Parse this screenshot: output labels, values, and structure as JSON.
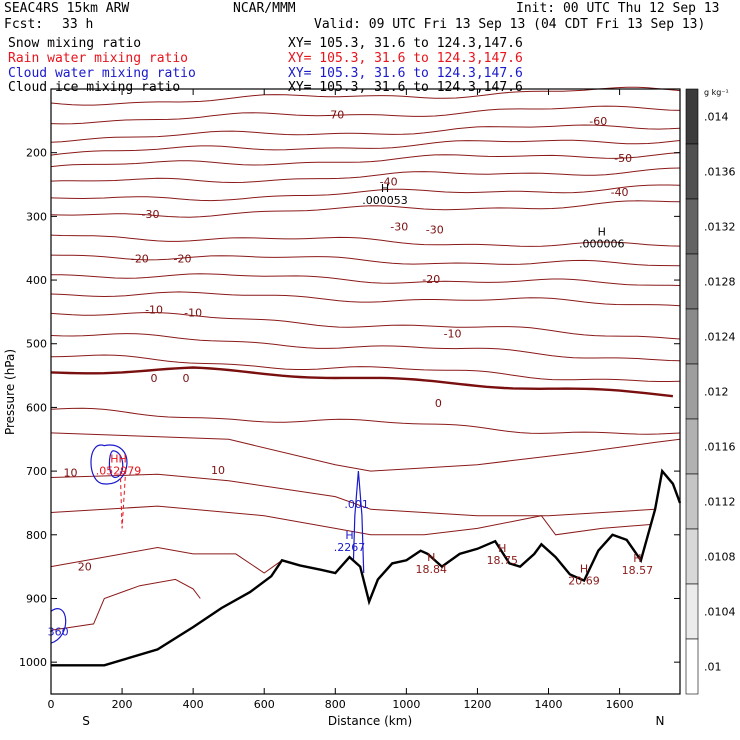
{
  "header": {
    "model": "SEAC4RS 15km ARW",
    "org": "NCAR/MMM",
    "init": "Init: 00 UTC Thu 12 Sep 13",
    "fcst_label": "Fcst:",
    "fcst_value": "33 h",
    "valid": "Valid: 09 UTC Fri 13 Sep 13 (04 CDT Fri 13 Sep 13)"
  },
  "fields": [
    {
      "name": "Snow mixing ratio",
      "xy": "XY= 105.3, 31.6 to 124.3,147.6",
      "color": "#000000"
    },
    {
      "name": "Rain water mixing ratio",
      "xy": "XY= 105.3, 31.6 to 124.3,147.6",
      "color": "#e8141c"
    },
    {
      "name": "Cloud water mixing ratio",
      "xy": "XY= 105.3, 31.6 to 124.3,147.6",
      "color": "#1a1acc"
    },
    {
      "name": "Cloud ice mixing ratio",
      "xy": "XY= 105.3, 31.6 to 124.3,147.6",
      "color": "#000000"
    }
  ],
  "chart_data": {
    "type": "contour",
    "xlabel": "Distance (km)",
    "ylabel": "Pressure (hPa)",
    "xlim": [
      0,
      1770
    ],
    "ylim": [
      1050,
      100
    ],
    "x_ticks": [
      0,
      200,
      400,
      600,
      800,
      1000,
      1200,
      1400,
      1600
    ],
    "y_ticks": [
      200,
      300,
      400,
      500,
      600,
      700,
      800,
      900,
      1000
    ],
    "left_end_label": "S",
    "right_end_label": "N",
    "colorbar_unit": "g kg⁻¹",
    "colorbar_ticks": [
      ".014",
      ".0136",
      ".0132",
      ".0128",
      ".0124",
      ".012",
      ".0116",
      ".0112",
      ".0108",
      ".0104",
      ".01"
    ],
    "isotherm_labels": [
      {
        "text": "-70",
        "x": 800,
        "p": 140
      },
      {
        "text": "-60",
        "x": 1540,
        "p": 150
      },
      {
        "text": "-50",
        "x": 1610,
        "p": 208
      },
      {
        "text": "-40",
        "x": 950,
        "p": 245
      },
      {
        "text": "-40",
        "x": 1600,
        "p": 262
      },
      {
        "text": "-30",
        "x": 280,
        "p": 296
      },
      {
        "text": "-30",
        "x": 980,
        "p": 316
      },
      {
        "text": "-30",
        "x": 1080,
        "p": 321
      },
      {
        "text": "-20",
        "x": 250,
        "p": 366
      },
      {
        "text": "-20",
        "x": 370,
        "p": 366
      },
      {
        "text": "-20",
        "x": 1070,
        "p": 398
      },
      {
        "text": "-10",
        "x": 290,
        "p": 446
      },
      {
        "text": "-10",
        "x": 400,
        "p": 451
      },
      {
        "text": "-10",
        "x": 1130,
        "p": 484
      },
      {
        "text": "0",
        "x": 290,
        "p": 554
      },
      {
        "text": "0",
        "x": 380,
        "p": 554
      },
      {
        "text": "0",
        "x": 1090,
        "p": 593
      },
      {
        "text": "10",
        "x": 55,
        "p": 702
      },
      {
        "text": "10",
        "x": 470,
        "p": 698
      },
      {
        "text": "20",
        "x": 95,
        "p": 850
      }
    ],
    "extrema": [
      {
        "symbol": "H",
        "value": ".000053",
        "x": 940,
        "p": 265,
        "color": "#000000"
      },
      {
        "symbol": "H",
        "value": ".000006",
        "x": 1550,
        "p": 333,
        "color": "#000000"
      },
      {
        "symbol": "HH",
        "value": ".052979",
        "x": 190,
        "p": 690,
        "color": "#e8141c"
      },
      {
        "symbol": "H",
        "value": "18.84",
        "x": 1070,
        "p": 844,
        "color": "#8b1a1a"
      },
      {
        "symbol": "H",
        "value": "18.75",
        "x": 1270,
        "p": 830,
        "color": "#8b1a1a"
      },
      {
        "symbol": "H",
        "value": "20.69",
        "x": 1500,
        "p": 862,
        "color": "#8b1a1a"
      },
      {
        "symbol": "H",
        "value": "18.57",
        "x": 1650,
        "p": 846,
        "color": "#8b1a1a"
      },
      {
        "symbol": "H",
        "value": ".2267",
        "x": 840,
        "p": 810,
        "color": "#1a1acc"
      }
    ],
    "cloud_labels": [
      {
        "text": ".001",
        "x": 860,
        "p": 752,
        "color": "#1a1acc"
      },
      {
        "text": "360",
        "x": 20,
        "p": 952,
        "color": "#1a1acc"
      }
    ],
    "terrain": [
      [
        0,
        1005
      ],
      [
        150,
        1005
      ],
      [
        300,
        980
      ],
      [
        400,
        945
      ],
      [
        480,
        915
      ],
      [
        560,
        890
      ],
      [
        620,
        865
      ],
      [
        650,
        840
      ],
      [
        700,
        848
      ],
      [
        760,
        855
      ],
      [
        800,
        860
      ],
      [
        840,
        835
      ],
      [
        870,
        850
      ],
      [
        895,
        905
      ],
      [
        920,
        870
      ],
      [
        960,
        845
      ],
      [
        1000,
        840
      ],
      [
        1040,
        825
      ],
      [
        1060,
        830
      ],
      [
        1100,
        850
      ],
      [
        1150,
        830
      ],
      [
        1200,
        822
      ],
      [
        1250,
        810
      ],
      [
        1290,
        845
      ],
      [
        1320,
        850
      ],
      [
        1360,
        830
      ],
      [
        1380,
        815
      ],
      [
        1420,
        835
      ],
      [
        1460,
        862
      ],
      [
        1500,
        872
      ],
      [
        1540,
        825
      ],
      [
        1580,
        800
      ],
      [
        1620,
        808
      ],
      [
        1660,
        840
      ],
      [
        1700,
        760
      ],
      [
        1720,
        700
      ],
      [
        1750,
        720
      ],
      [
        1770,
        750
      ]
    ]
  }
}
